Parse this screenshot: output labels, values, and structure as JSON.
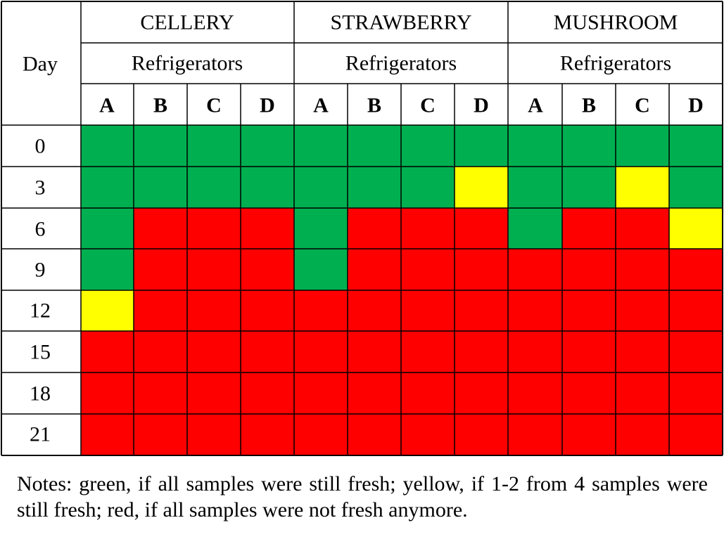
{
  "header": {
    "day_label": "Day",
    "groups": [
      {
        "name": "CELLERY",
        "sub": "Refrigerators"
      },
      {
        "name": "STRAWBERRY",
        "sub": "Refrigerators"
      },
      {
        "name": "MUSHROOM",
        "sub": "Refrigerators"
      }
    ],
    "columns": [
      "A",
      "B",
      "C",
      "D",
      "A",
      "B",
      "C",
      "D",
      "A",
      "B",
      "C",
      "D"
    ]
  },
  "notes": "Notes: green, if all samples were still fresh; yellow, if 1-2 from 4 samples were still fresh; red, if all samples were not fresh anymore.",
  "colors": {
    "G": "#00b050",
    "Y": "#ffff00",
    "R": "#ff0000"
  },
  "chart_data": {
    "type": "heatmap",
    "row_label": "Day",
    "rows": [
      "0",
      "3",
      "6",
      "9",
      "12",
      "15",
      "18",
      "21"
    ],
    "column_groups": [
      {
        "name": "CELLERY",
        "sub": "Refrigerators",
        "columns": [
          "A",
          "B",
          "C",
          "D"
        ]
      },
      {
        "name": "STRAWBERRY",
        "sub": "Refrigerators",
        "columns": [
          "A",
          "B",
          "C",
          "D"
        ]
      },
      {
        "name": "MUSHROOM",
        "sub": "Refrigerators",
        "columns": [
          "A",
          "B",
          "C",
          "D"
        ]
      }
    ],
    "legend": {
      "G": "green",
      "Y": "yellow",
      "R": "red"
    },
    "cells": [
      [
        "G",
        "G",
        "G",
        "G",
        "G",
        "G",
        "G",
        "G",
        "G",
        "G",
        "G",
        "G"
      ],
      [
        "G",
        "G",
        "G",
        "G",
        "G",
        "G",
        "G",
        "Y",
        "G",
        "G",
        "Y",
        "G"
      ],
      [
        "G",
        "R",
        "R",
        "R",
        "G",
        "R",
        "R",
        "R",
        "G",
        "R",
        "R",
        "Y"
      ],
      [
        "G",
        "R",
        "R",
        "R",
        "G",
        "R",
        "R",
        "R",
        "R",
        "R",
        "R",
        "R"
      ],
      [
        "Y",
        "R",
        "R",
        "R",
        "R",
        "R",
        "R",
        "R",
        "R",
        "R",
        "R",
        "R"
      ],
      [
        "R",
        "R",
        "R",
        "R",
        "R",
        "R",
        "R",
        "R",
        "R",
        "R",
        "R",
        "R"
      ],
      [
        "R",
        "R",
        "R",
        "R",
        "R",
        "R",
        "R",
        "R",
        "R",
        "R",
        "R",
        "R"
      ],
      [
        "R",
        "R",
        "R",
        "R",
        "R",
        "R",
        "R",
        "R",
        "R",
        "R",
        "R",
        "R"
      ]
    ]
  }
}
